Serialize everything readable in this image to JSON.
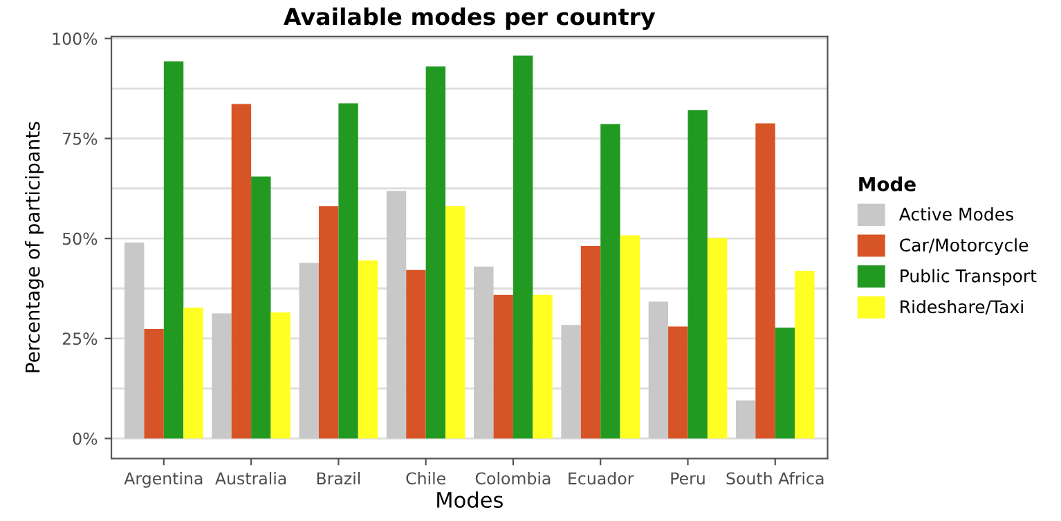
{
  "chart_data": {
    "type": "bar",
    "title": "Available modes per country",
    "xlabel": "Modes",
    "ylabel": "Percentage of participants",
    "legend_title": "Mode",
    "categories": [
      "Argentina",
      "Australia",
      "Brazil",
      "Chile",
      "Colombia",
      "Ecuador",
      "Peru",
      "South Africa"
    ],
    "series": [
      {
        "name": "Active Modes",
        "color": "#c8c8c8",
        "values": [
          49,
          31.3,
          43.9,
          61.9,
          43,
          28.4,
          34.2,
          9.5
        ]
      },
      {
        "name": "Car/Motorcycle",
        "color": "#d75427",
        "values": [
          27.4,
          83.6,
          58.1,
          42.1,
          35.9,
          48.1,
          28,
          78.8
        ]
      },
      {
        "name": "Public Transport",
        "color": "#229a22",
        "values": [
          94.3,
          65.5,
          83.8,
          93,
          95.7,
          78.6,
          82.1,
          27.7
        ]
      },
      {
        "name": "Rideshare/Taxi",
        "color": "#ffff24",
        "values": [
          32.7,
          31.5,
          44.5,
          58.1,
          35.9,
          50.8,
          50.1,
          41.9
        ]
      }
    ],
    "ylim": [
      -5,
      100.5
    ],
    "yticks": [
      {
        "value": 0,
        "label": "0%"
      },
      {
        "value": 12.5,
        "label": null
      },
      {
        "value": 25,
        "label": "25%"
      },
      {
        "value": 37.5,
        "label": null
      },
      {
        "value": 50,
        "label": "50%"
      },
      {
        "value": 62.5,
        "label": null
      },
      {
        "value": 75,
        "label": "75%"
      },
      {
        "value": 87.5,
        "label": null
      },
      {
        "value": 100,
        "label": "100%"
      }
    ],
    "grid": "y",
    "legend": "right"
  }
}
